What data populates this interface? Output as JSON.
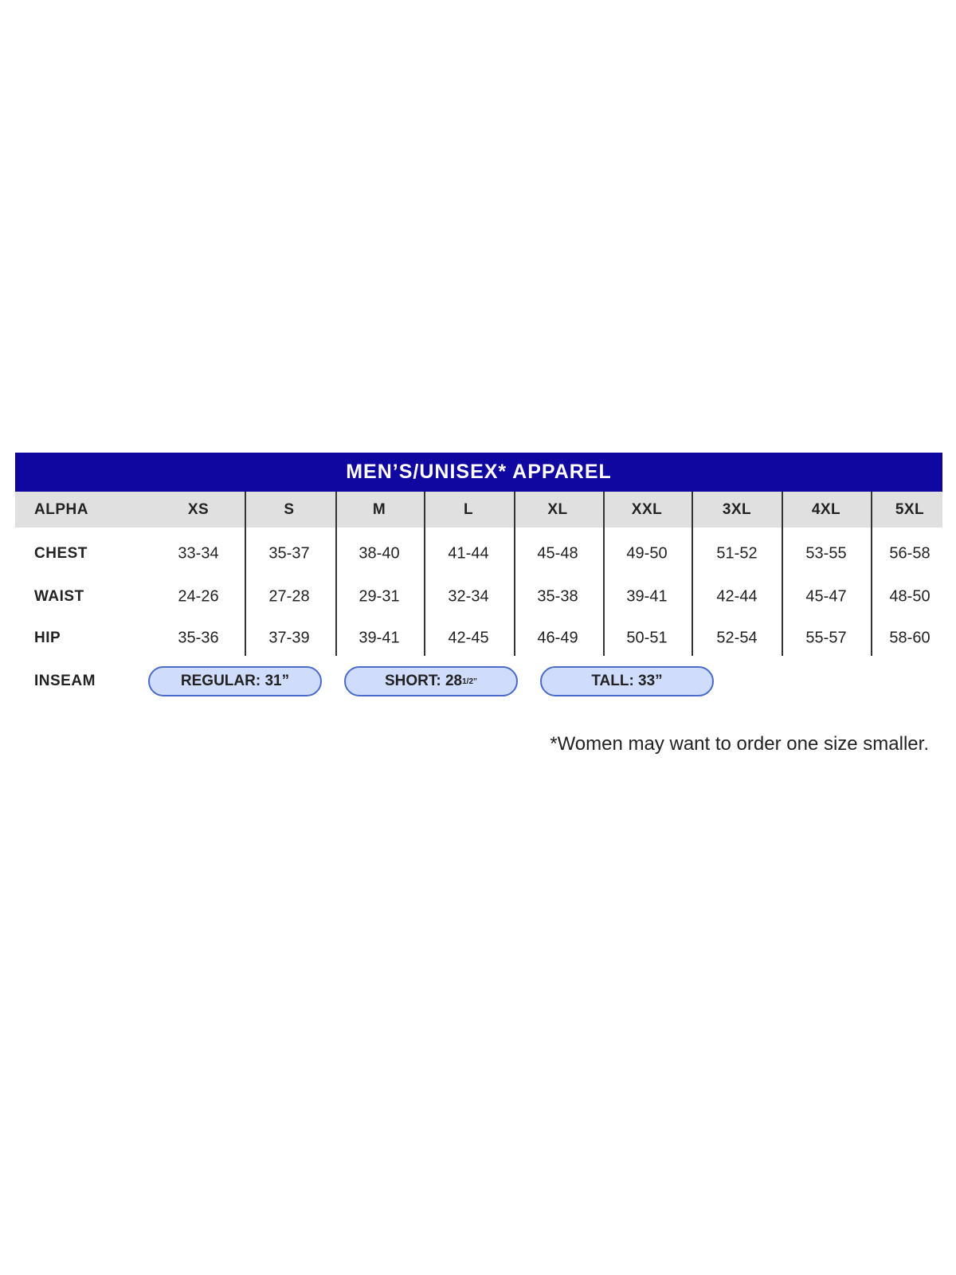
{
  "title": "MEN’S/UNISEX* APPAREL",
  "header_label": "ALPHA",
  "sizes": [
    "XS",
    "S",
    "M",
    "L",
    "XL",
    "XXL",
    "3XL",
    "4XL",
    "5XL"
  ],
  "rows": [
    {
      "label": "CHEST",
      "values": [
        "33-34",
        "35-37",
        "38-40",
        "41-44",
        "45-48",
        "49-50",
        "51-52",
        "53-55",
        "56-58"
      ]
    },
    {
      "label": "WAIST",
      "values": [
        "24-26",
        "27-28",
        "29-31",
        "32-34",
        "35-38",
        "39-41",
        "42-44",
        "45-47",
        "48-50"
      ]
    },
    {
      "label": "HIP",
      "values": [
        "35-36",
        "37-39",
        "39-41",
        "42-45",
        "46-49",
        "50-51",
        "52-54",
        "55-57",
        "58-60"
      ]
    }
  ],
  "inseam": {
    "label": "INSEAM",
    "options": [
      {
        "text": "REGULAR: 31”",
        "sup": ""
      },
      {
        "text": "SHORT: 28",
        "sup": "1/2”"
      },
      {
        "text": "TALL: 33”",
        "sup": ""
      }
    ]
  },
  "footnote": "*Women may want to order one size smaller.",
  "colors": {
    "banner": "#1006a0",
    "header": "#e0e0e0",
    "pill_fill": "#d0dcfc",
    "pill_border": "#4a6cc8"
  }
}
